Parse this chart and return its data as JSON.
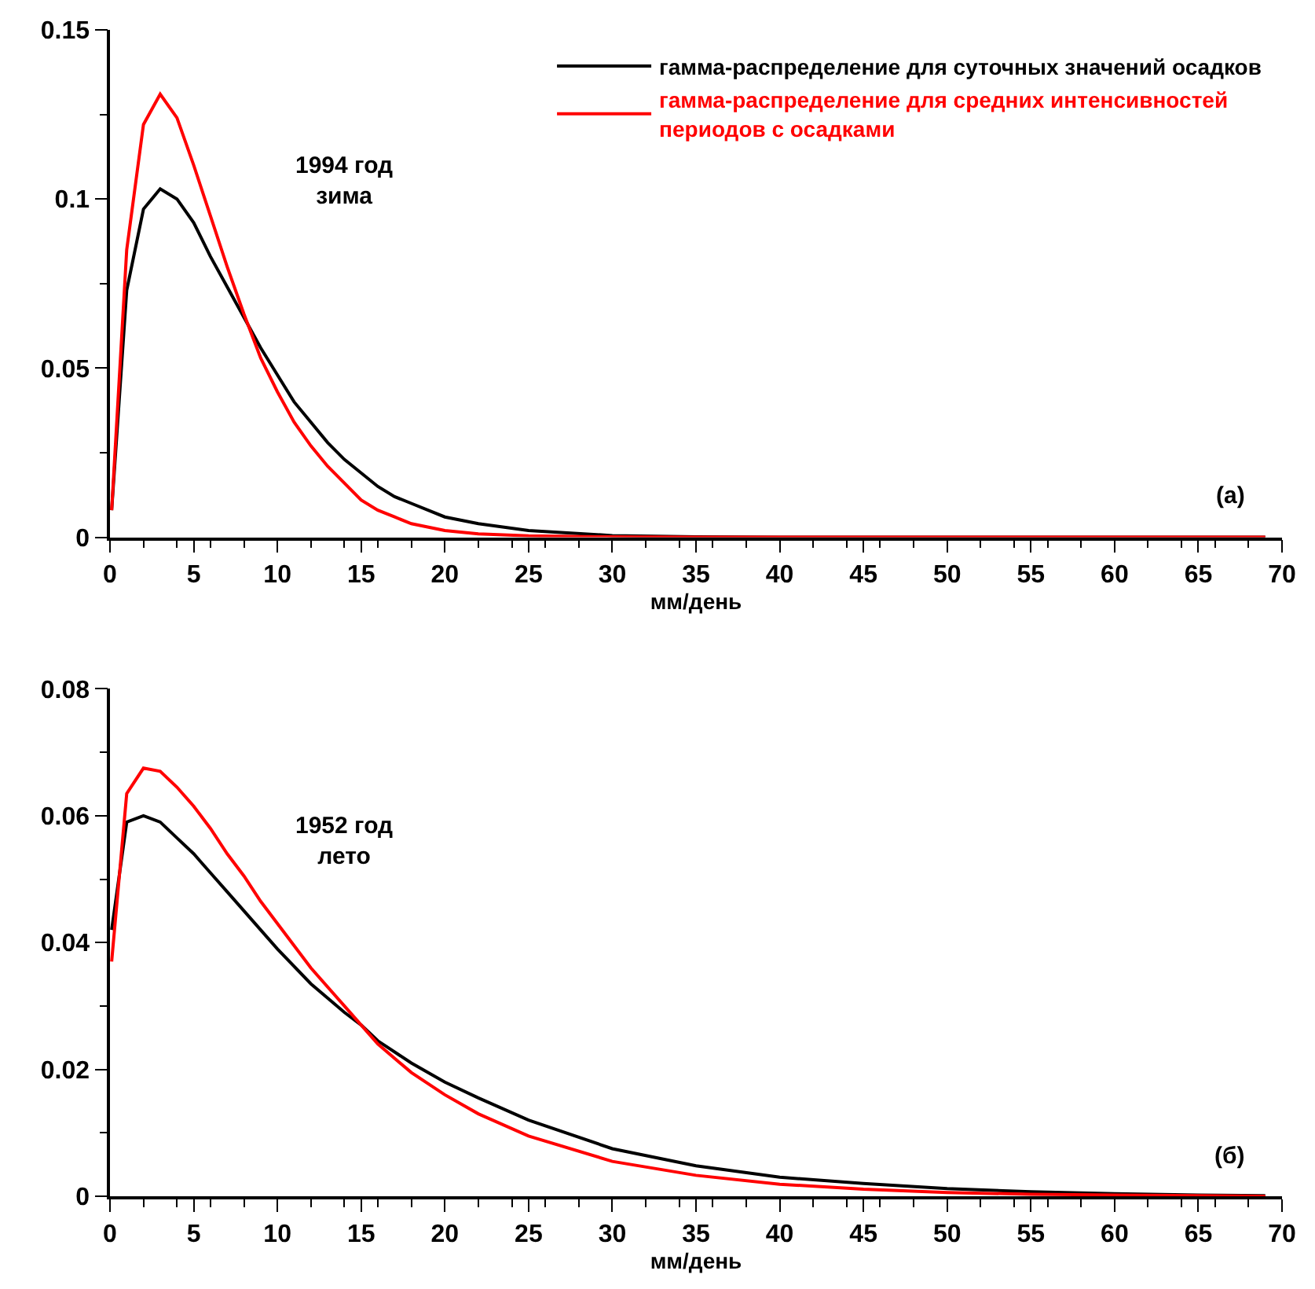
{
  "chart_data": [
    {
      "type": "line",
      "xlabel": "мм/день",
      "annotations": [
        "1994 год\nзима",
        "(а)"
      ],
      "legend": "top right",
      "marker": "none",
      "line_style": "solid",
      "xlim": [
        0,
        70
      ],
      "ylim": [
        0,
        0.15
      ],
      "xticks": [
        0,
        5,
        10,
        15,
        20,
        25,
        30,
        35,
        40,
        45,
        50,
        55,
        60,
        65,
        70
      ],
      "yticks": [
        0,
        {
          "value": 0.025,
          "label": null
        },
        0.05,
        {
          "value": 0.075,
          "label": null
        },
        0.1,
        {
          "value": 0.125,
          "label": null
        },
        0.15
      ],
      "x": [
        0.1,
        1,
        2,
        3,
        4,
        5,
        6,
        7,
        8,
        9,
        10,
        11,
        12,
        13,
        14,
        15,
        16,
        17,
        18,
        20,
        22,
        25,
        30,
        35,
        40,
        50,
        60,
        69
      ],
      "series": [
        {
          "name": "гамма-распределение для суточных значений осадков",
          "color": "#000000",
          "values": [
            0.008,
            0.073,
            0.097,
            0.103,
            0.1,
            0.093,
            0.083,
            0.074,
            0.065,
            0.056,
            0.048,
            0.04,
            0.034,
            0.028,
            0.023,
            0.019,
            0.015,
            0.012,
            0.01,
            0.006,
            0.004,
            0.002,
            0.0005,
            0.0001,
            0,
            0,
            0,
            0
          ]
        },
        {
          "name": "гамма-распределение для средних интенсивностей периодов с осадками",
          "color": "#ff0000",
          "values": [
            0.008,
            0.085,
            0.122,
            0.131,
            0.124,
            0.11,
            0.095,
            0.08,
            0.066,
            0.053,
            0.043,
            0.034,
            0.027,
            0.021,
            0.016,
            0.011,
            0.008,
            0.006,
            0.004,
            0.002,
            0.001,
            0.0004,
            0.0001,
            0,
            0,
            0,
            0,
            0
          ]
        }
      ]
    },
    {
      "type": "line",
      "xlabel": "мм/день",
      "annotations": [
        "1952 год\nлето",
        "(б)"
      ],
      "marker": "none",
      "line_style": "solid",
      "xlim": [
        0,
        70
      ],
      "ylim": [
        0,
        0.08
      ],
      "xticks": [
        0,
        5,
        10,
        15,
        20,
        25,
        30,
        35,
        40,
        45,
        50,
        55,
        60,
        65,
        70
      ],
      "yticks": [
        0,
        {
          "value": 0.01,
          "label": null
        },
        0.02,
        {
          "value": 0.03,
          "label": null
        },
        0.04,
        {
          "value": 0.05,
          "label": null
        },
        0.06,
        {
          "value": 0.07,
          "label": null
        },
        0.08
      ],
      "x": [
        0.1,
        1,
        2,
        3,
        4,
        5,
        6,
        7,
        8,
        9,
        10,
        12,
        14,
        15,
        16,
        18,
        20,
        22,
        25,
        30,
        35,
        40,
        45,
        50,
        55,
        60,
        65,
        69
      ],
      "series": [
        {
          "color": "#000000",
          "values": [
            0.042,
            0.059,
            0.06,
            0.059,
            0.0565,
            0.054,
            0.051,
            0.048,
            0.045,
            0.042,
            0.039,
            0.0335,
            0.029,
            0.027,
            0.0245,
            0.021,
            0.018,
            0.0155,
            0.012,
            0.0075,
            0.0048,
            0.003,
            0.002,
            0.0012,
            0.0007,
            0.0004,
            0.0002,
            0.0001
          ]
        },
        {
          "color": "#ff0000",
          "values": [
            0.037,
            0.0635,
            0.0675,
            0.067,
            0.0645,
            0.0615,
            0.058,
            0.054,
            0.0505,
            0.0465,
            0.043,
            0.036,
            0.03,
            0.027,
            0.024,
            0.0195,
            0.016,
            0.013,
            0.0095,
            0.0055,
            0.0033,
            0.0019,
            0.0011,
            0.0006,
            0.0003,
            0.0002,
            0.0001,
            0
          ]
        }
      ]
    }
  ]
}
